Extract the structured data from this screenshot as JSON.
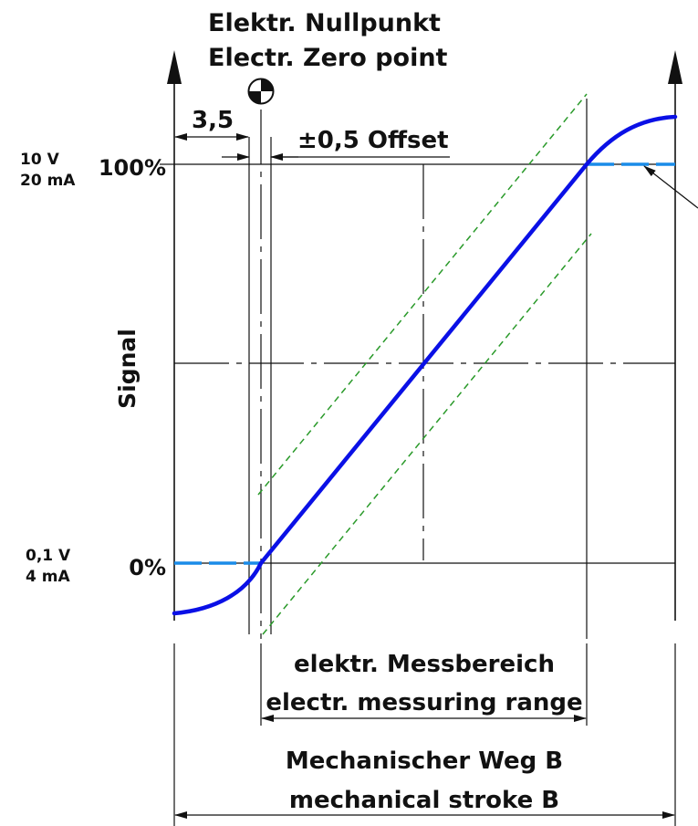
{
  "zero_point": {
    "label_de": "Elektr. Nullpunkt",
    "label_en": "Electr. Zero point",
    "icon": "zero-point-symbol-icon"
  },
  "dimensions": {
    "gap": "3,5",
    "offset": "±0,5 Offset"
  },
  "y_axis": {
    "label": "Signal",
    "top_percent": "100%",
    "top_value_v": "10 V",
    "top_value_ma": "20 mA",
    "bottom_percent": "0%",
    "bottom_value_v": "0,1 V",
    "bottom_value_ma": "4 mA"
  },
  "ranges": {
    "electrical_de": "elektr. Messbereich",
    "electrical_en": "electr. messuring range",
    "mechanical_de": "Mechanischer Weg B",
    "mechanical_en": "mechanical stroke B"
  },
  "colors": {
    "signal_curve": "#0a10e6",
    "saturation_dashed": "#1a8ce8",
    "tolerance_band": "#2a9a2a",
    "lines": "#111111"
  }
}
